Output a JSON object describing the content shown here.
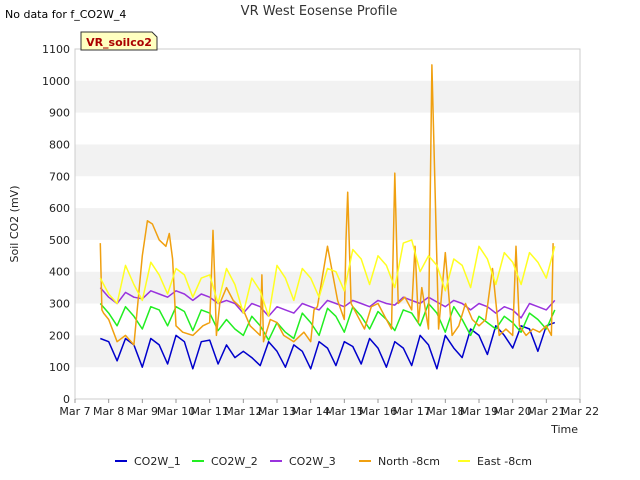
{
  "header": {
    "nodata_text": "No data for f_CO2W_4",
    "badge_text": "VR_soilco2"
  },
  "colors": {
    "CO2W_1": "#0000cc",
    "CO2W_2": "#22ee22",
    "CO2W_3": "#9933dd",
    "North -8cm": "#f0a010",
    "East -8cm": "#ffff22",
    "band": "#f2f2f2",
    "badge_fill": "#ffffc0"
  },
  "chart_data": {
    "type": "line",
    "title": "VR West Eosense Profile",
    "xlabel": "Time",
    "ylabel": "Soil CO2 (mV)",
    "x_range": [
      7,
      22
    ],
    "ylim": [
      0,
      1100
    ],
    "yticks": [
      0,
      100,
      200,
      300,
      400,
      500,
      600,
      700,
      800,
      900,
      1000,
      1100
    ],
    "xticks": [
      {
        "value": 7,
        "label": "Mar 7"
      },
      {
        "value": 8,
        "label": "Mar 8"
      },
      {
        "value": 9,
        "label": "Mar 9"
      },
      {
        "value": 10,
        "label": "Mar 10"
      },
      {
        "value": 11,
        "label": "Mar 11"
      },
      {
        "value": 12,
        "label": "Mar 12"
      },
      {
        "value": 13,
        "label": "Mar 13"
      },
      {
        "value": 14,
        "label": "Mar 14"
      },
      {
        "value": 15,
        "label": "Mar 15"
      },
      {
        "value": 16,
        "label": "Mar 16"
      },
      {
        "value": 17,
        "label": "Mar 17"
      },
      {
        "value": 18,
        "label": "Mar 18"
      },
      {
        "value": 19,
        "label": "Mar 19"
      },
      {
        "value": 20,
        "label": "Mar 20"
      },
      {
        "value": 21,
        "label": "Mar 21"
      },
      {
        "value": 22,
        "label": "Mar 22"
      }
    ],
    "grid": "horizontal bands",
    "legend_position": "bottom",
    "series": [
      {
        "name": "CO2W_1",
        "x": [
          7.75,
          8.0,
          8.25,
          8.5,
          8.75,
          9.0,
          9.25,
          9.5,
          9.75,
          10.0,
          10.25,
          10.5,
          10.75,
          11.0,
          11.25,
          11.5,
          11.75,
          12.0,
          12.25,
          12.5,
          12.75,
          13.0,
          13.25,
          13.5,
          13.75,
          14.0,
          14.25,
          14.5,
          14.75,
          15.0,
          15.25,
          15.5,
          15.75,
          16.0,
          16.25,
          16.5,
          16.75,
          17.0,
          17.25,
          17.5,
          17.75,
          18.0,
          18.25,
          18.5,
          18.75,
          19.0,
          19.25,
          19.5,
          19.75,
          20.0,
          20.25,
          20.5,
          20.75,
          21.0,
          21.25
        ],
        "y": [
          190,
          180,
          120,
          190,
          170,
          100,
          190,
          170,
          110,
          200,
          180,
          95,
          180,
          185,
          110,
          170,
          130,
          150,
          130,
          105,
          180,
          150,
          100,
          170,
          150,
          95,
          180,
          160,
          105,
          180,
          165,
          110,
          190,
          160,
          100,
          180,
          160,
          105,
          200,
          170,
          95,
          200,
          160,
          130,
          220,
          200,
          140,
          230,
          200,
          160,
          230,
          220,
          150,
          230,
          240
        ]
      },
      {
        "name": "CO2W_2",
        "x": [
          7.75,
          8.0,
          8.25,
          8.5,
          8.75,
          9.0,
          9.25,
          9.5,
          9.75,
          10.0,
          10.25,
          10.5,
          10.75,
          11.0,
          11.25,
          11.5,
          11.75,
          12.0,
          12.25,
          12.5,
          12.75,
          13.0,
          13.25,
          13.5,
          13.75,
          14.0,
          14.25,
          14.5,
          14.75,
          15.0,
          15.25,
          15.5,
          15.75,
          16.0,
          16.25,
          16.5,
          16.75,
          17.0,
          17.25,
          17.5,
          17.75,
          18.0,
          18.25,
          18.5,
          18.75,
          19.0,
          19.25,
          19.5,
          19.75,
          20.0,
          20.25,
          20.5,
          20.75,
          21.0,
          21.25
        ],
        "y": [
          300,
          270,
          230,
          290,
          260,
          220,
          290,
          280,
          230,
          290,
          275,
          215,
          280,
          270,
          215,
          250,
          220,
          200,
          260,
          230,
          185,
          240,
          210,
          190,
          270,
          240,
          200,
          285,
          260,
          210,
          290,
          260,
          220,
          275,
          250,
          215,
          280,
          270,
          230,
          300,
          270,
          210,
          290,
          250,
          200,
          260,
          240,
          220,
          260,
          240,
          210,
          270,
          250,
          220,
          280
        ]
      },
      {
        "name": "CO2W_3",
        "x": [
          7.75,
          8.0,
          8.25,
          8.5,
          8.75,
          9.0,
          9.25,
          9.5,
          9.75,
          10.0,
          10.25,
          10.5,
          10.75,
          11.0,
          11.25,
          11.5,
          11.75,
          12.0,
          12.25,
          12.5,
          12.75,
          13.0,
          13.25,
          13.5,
          13.75,
          14.0,
          14.25,
          14.5,
          14.75,
          15.0,
          15.25,
          15.5,
          15.75,
          16.0,
          16.25,
          16.5,
          16.75,
          17.0,
          17.25,
          17.5,
          17.75,
          18.0,
          18.25,
          18.5,
          18.75,
          19.0,
          19.25,
          19.5,
          19.75,
          20.0,
          20.25,
          20.5,
          20.75,
          21.0,
          21.25
        ],
        "y": [
          350,
          320,
          300,
          335,
          320,
          315,
          340,
          330,
          320,
          340,
          330,
          310,
          330,
          320,
          300,
          310,
          300,
          270,
          300,
          290,
          260,
          290,
          280,
          270,
          300,
          290,
          280,
          310,
          300,
          290,
          310,
          300,
          290,
          310,
          300,
          295,
          320,
          310,
          300,
          320,
          305,
          290,
          310,
          300,
          280,
          300,
          290,
          270,
          290,
          280,
          255,
          300,
          290,
          280,
          310
        ]
      },
      {
        "name": "North -8cm",
        "x": [
          7.75,
          7.8,
          7.85,
          8.0,
          8.25,
          8.5,
          8.75,
          9.0,
          9.15,
          9.3,
          9.5,
          9.7,
          9.8,
          9.9,
          10.0,
          10.2,
          10.5,
          10.8,
          11.0,
          11.1,
          11.15,
          11.2,
          11.3,
          11.5,
          11.7,
          12.0,
          12.2,
          12.5,
          12.55,
          12.6,
          12.8,
          13.0,
          13.2,
          13.5,
          13.8,
          14.0,
          14.1,
          14.2,
          14.5,
          14.8,
          15.0,
          15.05,
          15.1,
          15.2,
          15.4,
          15.6,
          15.8,
          16.0,
          16.2,
          16.4,
          16.5,
          16.6,
          16.8,
          17.0,
          17.1,
          17.2,
          17.3,
          17.5,
          17.6,
          17.8,
          18.0,
          18.2,
          18.4,
          18.6,
          18.8,
          19.0,
          19.2,
          19.4,
          19.6,
          19.8,
          20.0,
          20.1,
          20.2,
          20.4,
          20.6,
          20.8,
          21.0,
          21.15,
          21.2
        ],
        "y": [
          490,
          280,
          270,
          250,
          180,
          200,
          170,
          450,
          560,
          550,
          500,
          480,
          520,
          440,
          230,
          210,
          200,
          230,
          240,
          530,
          380,
          200,
          300,
          350,
          310,
          280,
          230,
          200,
          390,
          180,
          250,
          240,
          200,
          180,
          210,
          180,
          280,
          290,
          480,
          310,
          250,
          500,
          650,
          300,
          260,
          220,
          290,
          300,
          260,
          220,
          710,
          300,
          320,
          280,
          480,
          240,
          350,
          220,
          1050,
          220,
          460,
          200,
          230,
          300,
          250,
          230,
          250,
          410,
          200,
          220,
          200,
          480,
          230,
          200,
          220,
          210,
          230,
          200,
          490
        ]
      },
      {
        "name": "East -8cm",
        "x": [
          7.75,
          8.0,
          8.25,
          8.5,
          8.75,
          9.0,
          9.25,
          9.5,
          9.75,
          10.0,
          10.25,
          10.5,
          10.75,
          11.0,
          11.25,
          11.5,
          11.75,
          12.0,
          12.25,
          12.5,
          12.75,
          13.0,
          13.25,
          13.5,
          13.75,
          14.0,
          14.25,
          14.5,
          14.75,
          15.0,
          15.25,
          15.5,
          15.75,
          16.0,
          16.25,
          16.5,
          16.75,
          17.0,
          17.25,
          17.5,
          17.75,
          18.0,
          18.25,
          18.5,
          18.75,
          19.0,
          19.25,
          19.5,
          19.75,
          20.0,
          20.25,
          20.5,
          20.75,
          21.0,
          21.25
        ],
        "y": [
          380,
          330,
          300,
          420,
          360,
          310,
          430,
          390,
          330,
          410,
          390,
          320,
          380,
          390,
          300,
          410,
          360,
          270,
          380,
          340,
          260,
          420,
          380,
          310,
          410,
          380,
          320,
          410,
          400,
          340,
          470,
          440,
          360,
          450,
          420,
          350,
          490,
          500,
          400,
          450,
          420,
          340,
          440,
          420,
          350,
          480,
          440,
          360,
          460,
          430,
          360,
          460,
          430,
          380,
          480
        ]
      }
    ]
  }
}
